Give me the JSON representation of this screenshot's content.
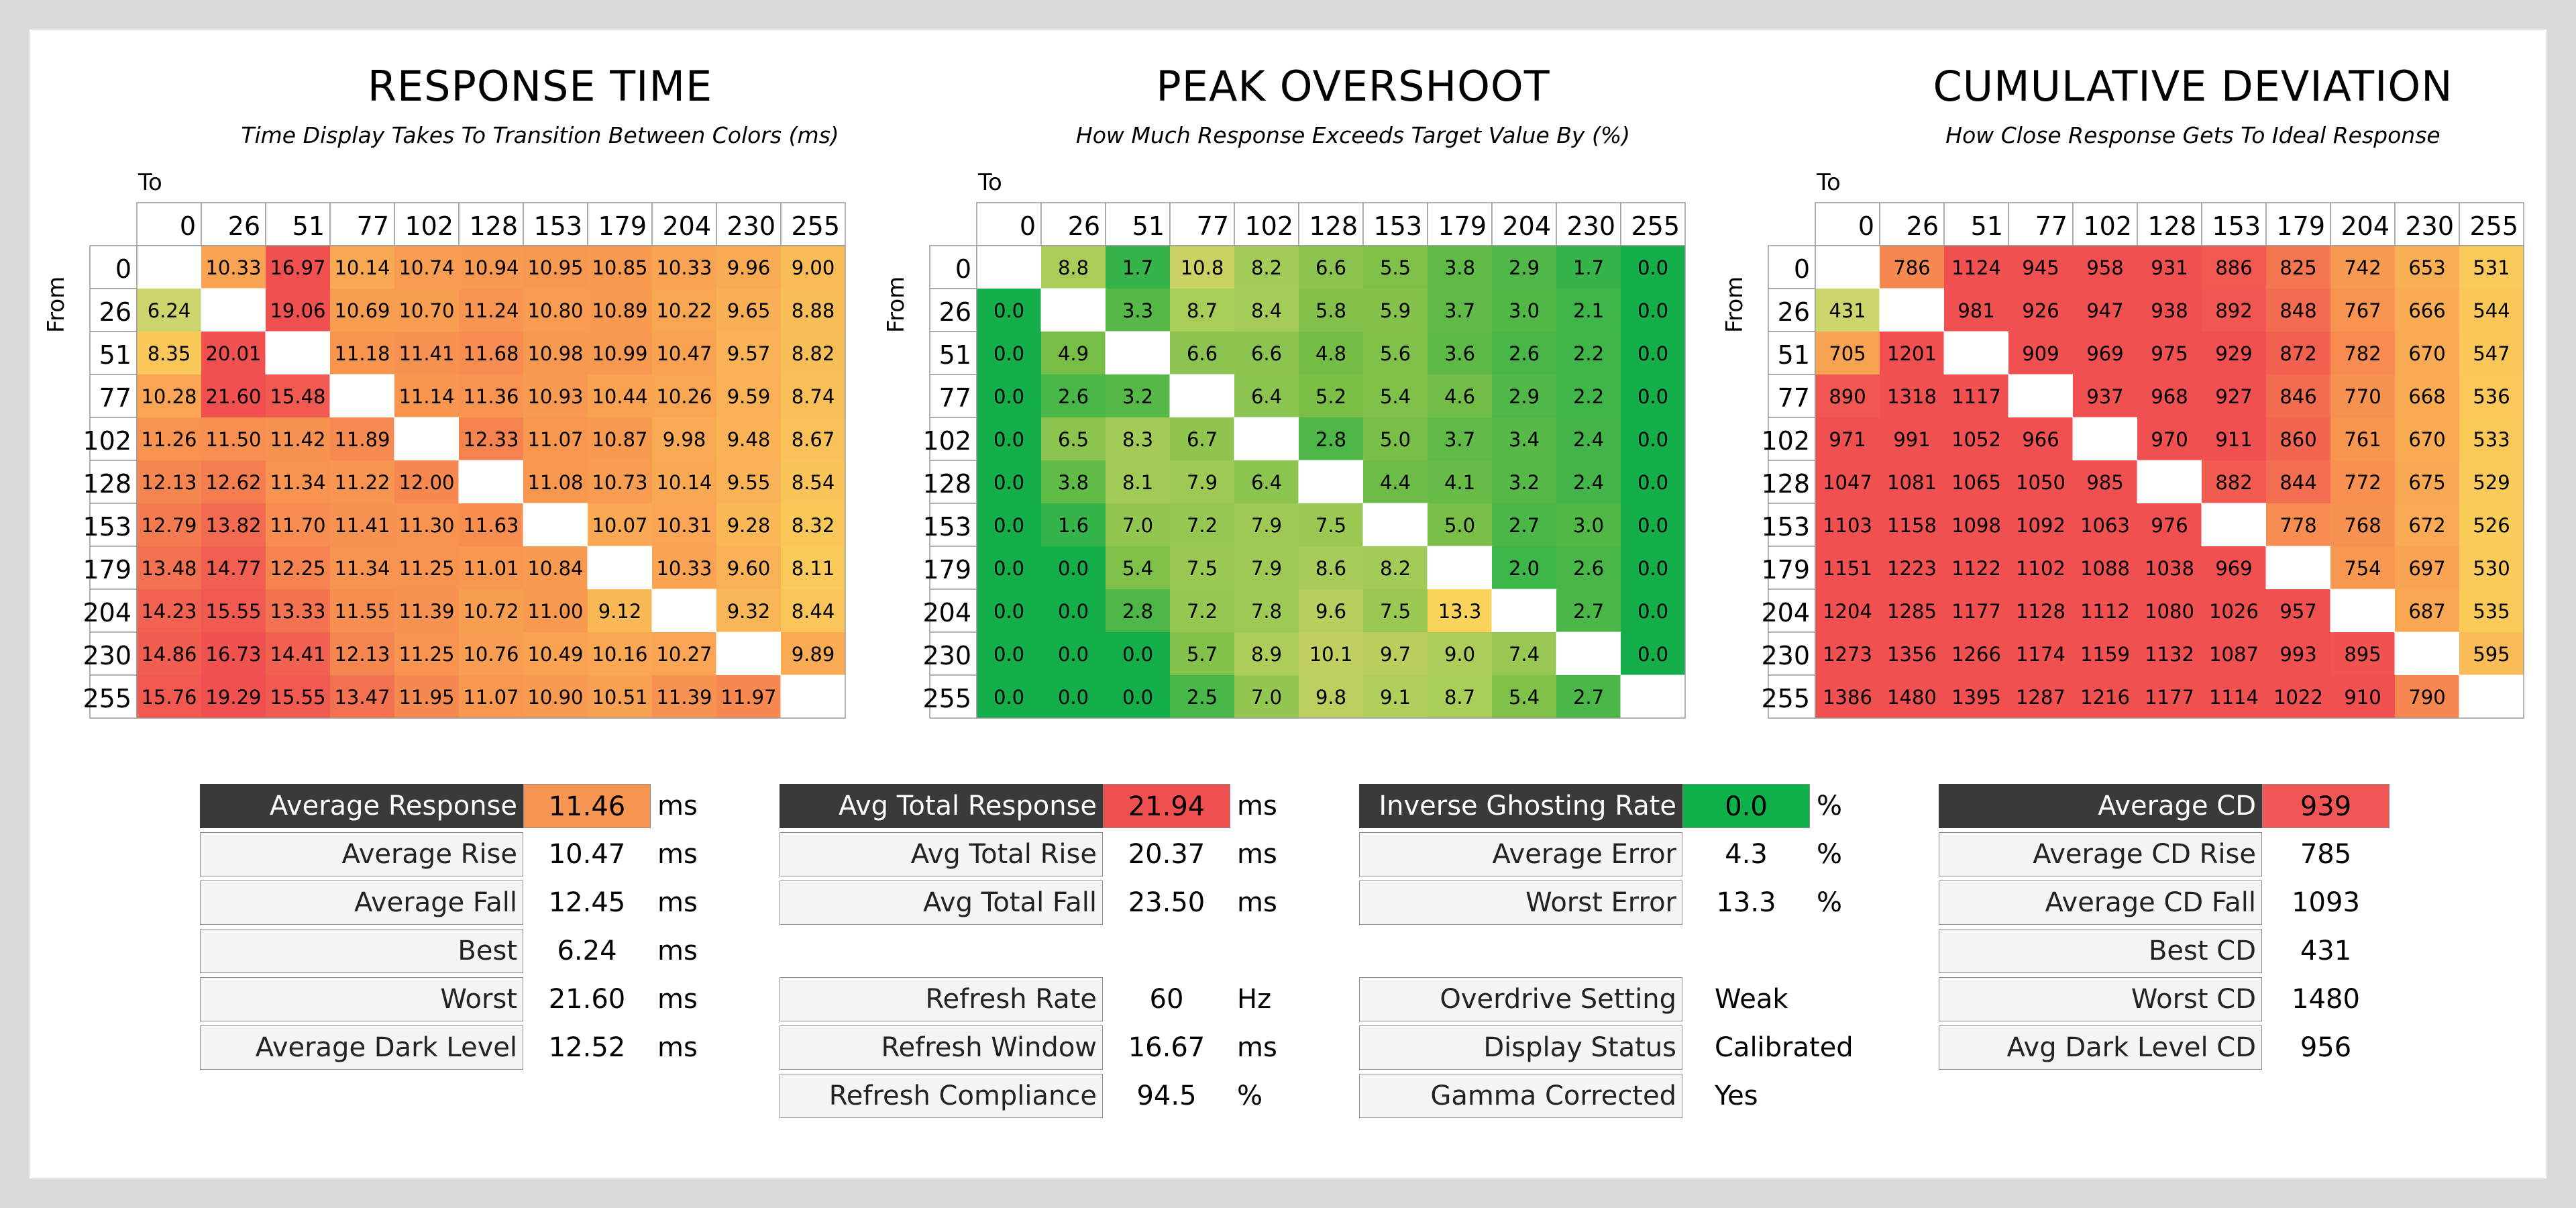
{
  "chart_data": [
    {
      "type": "heatmap",
      "title": "RESPONSE TIME",
      "subtitle": "Time Display Takes To Transition Between Colors (ms)",
      "xlabel": "To",
      "ylabel": "From",
      "x_labels": [
        "0",
        "26",
        "51",
        "77",
        "102",
        "128",
        "153",
        "179",
        "204",
        "230",
        "255"
      ],
      "y_labels": [
        "0",
        "26",
        "51",
        "77",
        "102",
        "128",
        "153",
        "179",
        "204",
        "230",
        "255"
      ],
      "values": [
        [
          null,
          "10.33",
          "16.97",
          "10.14",
          "10.74",
          "10.94",
          "10.95",
          "10.85",
          "10.33",
          "9.96",
          "9.00"
        ],
        [
          "6.24",
          null,
          "19.06",
          "10.69",
          "10.70",
          "11.24",
          "10.80",
          "10.89",
          "10.22",
          "9.65",
          "8.88"
        ],
        [
          "8.35",
          "20.01",
          null,
          "11.18",
          "11.41",
          "11.68",
          "10.98",
          "10.99",
          "10.47",
          "9.57",
          "8.82"
        ],
        [
          "10.28",
          "21.60",
          "15.48",
          null,
          "11.14",
          "11.36",
          "10.93",
          "10.44",
          "10.26",
          "9.59",
          "8.74"
        ],
        [
          "11.26",
          "11.50",
          "11.42",
          "11.89",
          null,
          "12.33",
          "11.07",
          "10.87",
          "9.98",
          "9.48",
          "8.67"
        ],
        [
          "12.13",
          "12.62",
          "11.34",
          "11.22",
          "12.00",
          null,
          "11.08",
          "10.73",
          "10.14",
          "9.55",
          "8.54"
        ],
        [
          "12.79",
          "13.82",
          "11.70",
          "11.41",
          "11.30",
          "11.63",
          null,
          "10.07",
          "10.31",
          "9.28",
          "8.32"
        ],
        [
          "13.48",
          "14.77",
          "12.25",
          "11.34",
          "11.25",
          "11.01",
          "10.84",
          null,
          "10.33",
          "9.60",
          "8.11"
        ],
        [
          "14.23",
          "15.55",
          "13.33",
          "11.55",
          "11.39",
          "10.72",
          "11.00",
          "9.12",
          null,
          "9.32",
          "8.44"
        ],
        [
          "14.86",
          "16.73",
          "14.41",
          "12.13",
          "11.25",
          "10.76",
          "10.49",
          "10.16",
          "10.27",
          null,
          "9.89"
        ],
        [
          "15.76",
          "19.29",
          "15.55",
          "13.47",
          "11.95",
          "11.07",
          "10.90",
          "10.51",
          "11.39",
          "11.97",
          null
        ]
      ],
      "color_scale": "response"
    },
    {
      "type": "heatmap",
      "title": "PEAK OVERSHOOT",
      "subtitle": "How Much Response Exceeds Target Value By (%)",
      "xlabel": "To",
      "ylabel": "From",
      "x_labels": [
        "0",
        "26",
        "51",
        "77",
        "102",
        "128",
        "153",
        "179",
        "204",
        "230",
        "255"
      ],
      "y_labels": [
        "0",
        "26",
        "51",
        "77",
        "102",
        "128",
        "153",
        "179",
        "204",
        "230",
        "255"
      ],
      "values": [
        [
          null,
          "8.8",
          "1.7",
          "10.8",
          "8.2",
          "6.6",
          "5.5",
          "3.8",
          "2.9",
          "1.7",
          "0.0"
        ],
        [
          "0.0",
          null,
          "3.3",
          "8.7",
          "8.4",
          "5.8",
          "5.9",
          "3.7",
          "3.0",
          "2.1",
          "0.0"
        ],
        [
          "0.0",
          "4.9",
          null,
          "6.6",
          "6.6",
          "4.8",
          "5.6",
          "3.6",
          "2.6",
          "2.2",
          "0.0"
        ],
        [
          "0.0",
          "2.6",
          "3.2",
          null,
          "6.4",
          "5.2",
          "5.4",
          "4.6",
          "2.9",
          "2.2",
          "0.0"
        ],
        [
          "0.0",
          "6.5",
          "8.3",
          "6.7",
          null,
          "2.8",
          "5.0",
          "3.7",
          "3.4",
          "2.4",
          "0.0"
        ],
        [
          "0.0",
          "3.8",
          "8.1",
          "7.9",
          "6.4",
          null,
          "4.4",
          "4.1",
          "3.2",
          "2.4",
          "0.0"
        ],
        [
          "0.0",
          "1.6",
          "7.0",
          "7.2",
          "7.9",
          "7.5",
          null,
          "5.0",
          "2.7",
          "3.0",
          "0.0"
        ],
        [
          "0.0",
          "0.0",
          "5.4",
          "7.5",
          "7.9",
          "8.6",
          "8.2",
          null,
          "2.0",
          "2.6",
          "0.0"
        ],
        [
          "0.0",
          "0.0",
          "2.8",
          "7.2",
          "7.8",
          "9.6",
          "7.5",
          "13.3",
          null,
          "2.7",
          "0.0"
        ],
        [
          "0.0",
          "0.0",
          "0.0",
          "5.7",
          "8.9",
          "10.1",
          "9.7",
          "9.0",
          "7.4",
          null,
          "0.0"
        ],
        [
          "0.0",
          "0.0",
          "0.0",
          "2.5",
          "7.0",
          "9.8",
          "9.1",
          "8.7",
          "5.4",
          "2.7",
          null
        ]
      ],
      "color_scale": "overshoot"
    },
    {
      "type": "heatmap",
      "title": "CUMULATIVE DEVIATION",
      "subtitle": "How Close Response Gets To Ideal Response",
      "xlabel": "To",
      "ylabel": "From",
      "x_labels": [
        "0",
        "26",
        "51",
        "77",
        "102",
        "128",
        "153",
        "179",
        "204",
        "230",
        "255"
      ],
      "y_labels": [
        "0",
        "26",
        "51",
        "77",
        "102",
        "128",
        "153",
        "179",
        "204",
        "230",
        "255"
      ],
      "values": [
        [
          null,
          "786",
          "1124",
          "945",
          "958",
          "931",
          "886",
          "825",
          "742",
          "653",
          "531"
        ],
        [
          "431",
          null,
          "981",
          "926",
          "947",
          "938",
          "892",
          "848",
          "767",
          "666",
          "544"
        ],
        [
          "705",
          "1201",
          null,
          "909",
          "969",
          "975",
          "929",
          "872",
          "782",
          "670",
          "547"
        ],
        [
          "890",
          "1318",
          "1117",
          null,
          "937",
          "968",
          "927",
          "846",
          "770",
          "668",
          "536"
        ],
        [
          "971",
          "991",
          "1052",
          "966",
          null,
          "970",
          "911",
          "860",
          "761",
          "670",
          "533"
        ],
        [
          "1047",
          "1081",
          "1065",
          "1050",
          "985",
          null,
          "882",
          "844",
          "772",
          "675",
          "529"
        ],
        [
          "1103",
          "1158",
          "1098",
          "1092",
          "1063",
          "976",
          null,
          "778",
          "768",
          "672",
          "526"
        ],
        [
          "1151",
          "1223",
          "1122",
          "1102",
          "1088",
          "1038",
          "969",
          null,
          "754",
          "697",
          "530"
        ],
        [
          "1204",
          "1285",
          "1177",
          "1128",
          "1112",
          "1080",
          "1026",
          "957",
          null,
          "687",
          "535"
        ],
        [
          "1273",
          "1356",
          "1266",
          "1174",
          "1159",
          "1132",
          "1087",
          "993",
          "895",
          null,
          "595"
        ],
        [
          "1386",
          "1480",
          "1395",
          "1287",
          "1216",
          "1177",
          "1114",
          "1022",
          "910",
          "790",
          null
        ]
      ],
      "color_scale": "cd"
    }
  ],
  "stats": {
    "response": [
      {
        "label": "Average Response",
        "value": "11.46",
        "unit": "ms",
        "header": true,
        "color": "#f79552"
      },
      {
        "label": "Average Rise",
        "value": "10.47",
        "unit": "ms"
      },
      {
        "label": "Average Fall",
        "value": "12.45",
        "unit": "ms"
      },
      {
        "label": "Best",
        "value": "6.24",
        "unit": "ms"
      },
      {
        "label": "Worst",
        "value": "21.60",
        "unit": "ms"
      },
      {
        "label": "Average Dark Level",
        "value": "12.52",
        "unit": "ms"
      }
    ],
    "total": [
      {
        "label": "Avg Total Response",
        "value": "21.94",
        "unit": "ms",
        "header": true,
        "color": "#ef4f4f"
      },
      {
        "label": "Avg Total Rise",
        "value": "20.37",
        "unit": "ms"
      },
      {
        "label": "Avg Total Fall",
        "value": "23.50",
        "unit": "ms"
      }
    ],
    "refresh": [
      {
        "label": "Refresh Rate",
        "value": "60",
        "unit": "Hz"
      },
      {
        "label": "Refresh Window",
        "value": "16.67",
        "unit": "ms"
      },
      {
        "label": "Refresh Compliance",
        "value": "94.5",
        "unit": "%"
      }
    ],
    "overshoot": [
      {
        "label": "Inverse Ghosting Rate",
        "value": "0.0",
        "unit": "%",
        "header": true,
        "color": "#0fb24a"
      },
      {
        "label": "Average Error",
        "value": "4.3",
        "unit": "%"
      },
      {
        "label": "Worst Error",
        "value": "13.3",
        "unit": "%"
      }
    ],
    "settings": [
      {
        "label": "Overdrive Setting",
        "value": "Weak",
        "unit": ""
      },
      {
        "label": "Display Status",
        "value": "Calibrated",
        "unit": ""
      },
      {
        "label": "Gamma Corrected",
        "value": "Yes",
        "unit": ""
      }
    ],
    "cd": [
      {
        "label": "Average CD",
        "value": "939",
        "unit": "",
        "header": true,
        "color": "#f15656"
      },
      {
        "label": "Average CD Rise",
        "value": "785",
        "unit": ""
      },
      {
        "label": "Average CD Fall",
        "value": "1093",
        "unit": ""
      },
      {
        "label": "Best CD",
        "value": "431",
        "unit": ""
      },
      {
        "label": "Worst CD",
        "value": "1480",
        "unit": ""
      },
      {
        "label": "Avg Dark Level CD",
        "value": "956",
        "unit": ""
      }
    ]
  }
}
